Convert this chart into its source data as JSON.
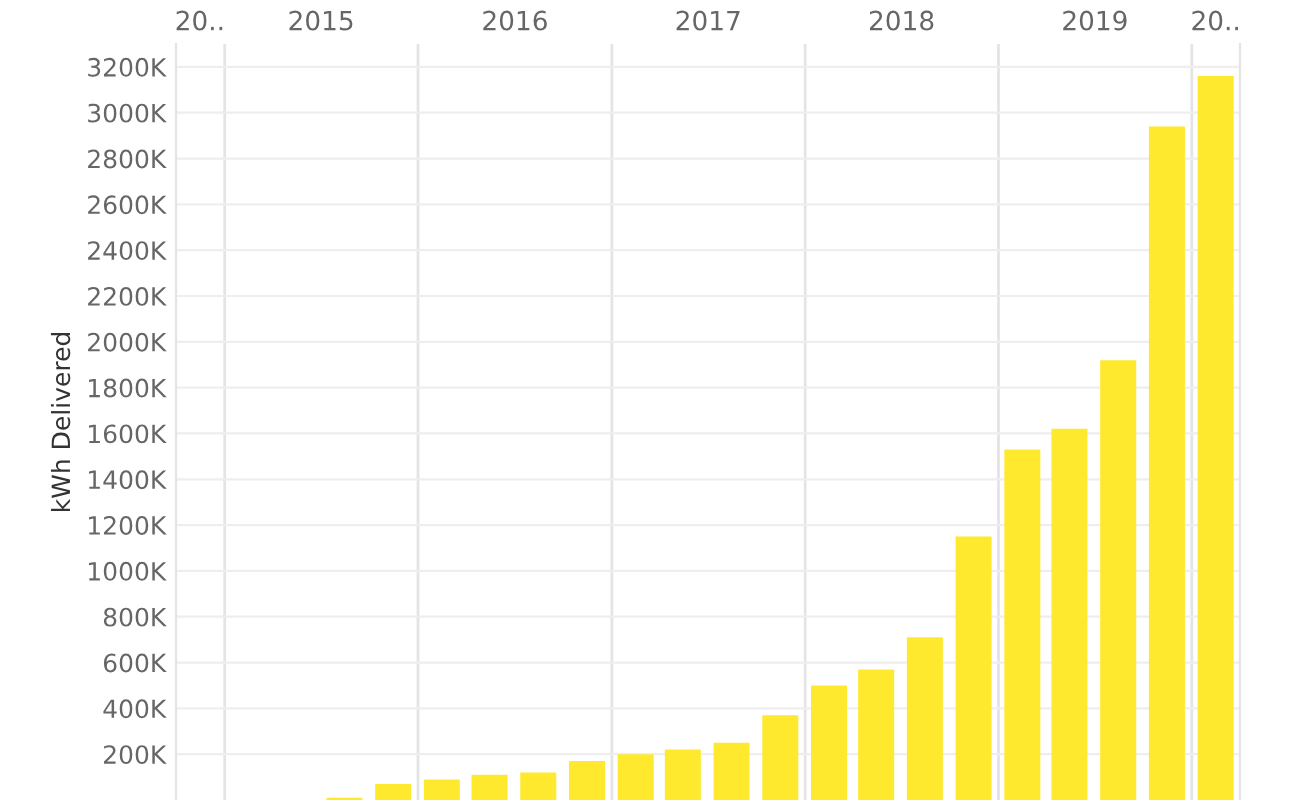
{
  "chart_data": {
    "type": "bar",
    "ylabel": "kWh Delivered",
    "x": [
      "2015-08-15",
      "2015-11-15",
      "2016-02-15",
      "2016-05-15",
      "2016-08-15",
      "2016-11-15",
      "2017-02-15",
      "2017-05-15",
      "2017-08-15",
      "2017-11-15",
      "2018-02-15",
      "2018-05-15",
      "2018-08-15",
      "2018-11-15",
      "2019-02-15",
      "2019-05-15",
      "2019-08-15",
      "2019-11-15",
      "2020-02-15"
    ],
    "values": [
      10000,
      70000,
      90000,
      110000,
      120000,
      170000,
      200000,
      220000,
      250000,
      370000,
      500000,
      570000,
      710000,
      1150000,
      1530000,
      1620000,
      1920000,
      2940000,
      3160000
    ],
    "color": "#ffe92e",
    "xlim": [
      "2014-10-01",
      "2020-04-01"
    ],
    "xticks": [
      {
        "value": "2014-11-15",
        "label": "20.."
      },
      {
        "value": "2015-01-01",
        "label": null
      },
      {
        "value": "2015-07-02",
        "label": "2015"
      },
      {
        "value": "2016-01-01",
        "label": null
      },
      {
        "value": "2016-07-02",
        "label": "2016"
      },
      {
        "value": "2017-01-01",
        "label": null
      },
      {
        "value": "2017-07-02",
        "label": "2017"
      },
      {
        "value": "2018-01-01",
        "label": null
      },
      {
        "value": "2018-07-02",
        "label": "2018"
      },
      {
        "value": "2019-01-01",
        "label": null
      },
      {
        "value": "2019-07-02",
        "label": "2019"
      },
      {
        "value": "2020-01-01",
        "label": null
      },
      {
        "value": "2020-02-15",
        "label": "20.."
      }
    ],
    "ylim": [
      0,
      3300000
    ],
    "yticks": [
      {
        "value": 200000,
        "label": "200K"
      },
      {
        "value": 400000,
        "label": "400K"
      },
      {
        "value": 600000,
        "label": "600K"
      },
      {
        "value": 800000,
        "label": "800K"
      },
      {
        "value": 1000000,
        "label": "1000K"
      },
      {
        "value": 1200000,
        "label": "1200K"
      },
      {
        "value": 1400000,
        "label": "1400K"
      },
      {
        "value": 1600000,
        "label": "1600K"
      },
      {
        "value": 1800000,
        "label": "1800K"
      },
      {
        "value": 2000000,
        "label": "2000K"
      },
      {
        "value": 2200000,
        "label": "2200K"
      },
      {
        "value": 2400000,
        "label": "2400K"
      },
      {
        "value": 2600000,
        "label": "2600K"
      },
      {
        "value": 2800000,
        "label": "2800K"
      },
      {
        "value": 3000000,
        "label": "3000K"
      },
      {
        "value": 3200000,
        "label": "3200K"
      }
    ],
    "grid": true
  }
}
